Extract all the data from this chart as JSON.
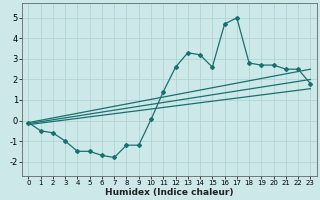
{
  "xlabel": "Humidex (Indice chaleur)",
  "background_color": "#cce8e8",
  "grid_color": "#add0d0",
  "line_color": "#1a7070",
  "xlim": [
    -0.5,
    23.5
  ],
  "ylim": [
    -2.7,
    5.7
  ],
  "yticks": [
    -2,
    -1,
    0,
    1,
    2,
    3,
    4,
    5
  ],
  "xticks": [
    0,
    1,
    2,
    3,
    4,
    5,
    6,
    7,
    8,
    9,
    10,
    11,
    12,
    13,
    14,
    15,
    16,
    17,
    18,
    19,
    20,
    21,
    22,
    23
  ],
  "series1_x": [
    0,
    1,
    2,
    3,
    4,
    5,
    6,
    7,
    8,
    9,
    10,
    11,
    12,
    13,
    14,
    15,
    16,
    17,
    18,
    19,
    20,
    21,
    22,
    23
  ],
  "series1_y": [
    -0.1,
    -0.5,
    -0.6,
    -1.0,
    -1.5,
    -1.5,
    -1.7,
    -1.8,
    -1.2,
    -1.2,
    0.05,
    1.4,
    2.6,
    3.3,
    3.2,
    2.6,
    4.7,
    5.0,
    2.8,
    2.7,
    2.7,
    2.5,
    2.5,
    1.8
  ],
  "series2_x": [
    0,
    23
  ],
  "series2_y": [
    -0.1,
    2.5
  ],
  "series3_x": [
    0,
    23
  ],
  "series3_y": [
    -0.2,
    1.55
  ],
  "series4_x": [
    0,
    23
  ],
  "series4_y": [
    -0.15,
    2.0
  ]
}
